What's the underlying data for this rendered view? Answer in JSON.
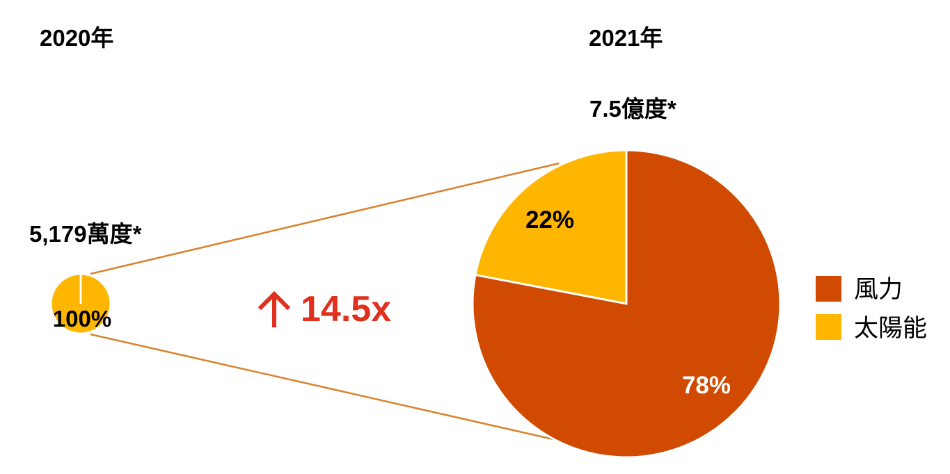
{
  "chart_data": [
    {
      "type": "pie",
      "title": "2020年",
      "total_label": "5,179萬度*",
      "slices": [
        {
          "name": "太陽能",
          "value": 100,
          "label": "100%"
        }
      ]
    },
    {
      "type": "pie",
      "title": "2021年",
      "total_label": "7.5億度*",
      "slices": [
        {
          "name": "太陽能",
          "value": 22,
          "label": "22%"
        },
        {
          "name": "風力",
          "value": 78,
          "label": "78%"
        }
      ]
    }
  ],
  "growth_label": "14.5x",
  "legend": [
    {
      "name": "風力",
      "color": "#D04A02"
    },
    {
      "name": "太陽能",
      "color": "#FFB600"
    }
  ],
  "colors": {
    "wind": "#D04A02",
    "solar": "#FFB600",
    "connector": "#D9822B",
    "growth": "#E0301E",
    "text": "#000000"
  }
}
